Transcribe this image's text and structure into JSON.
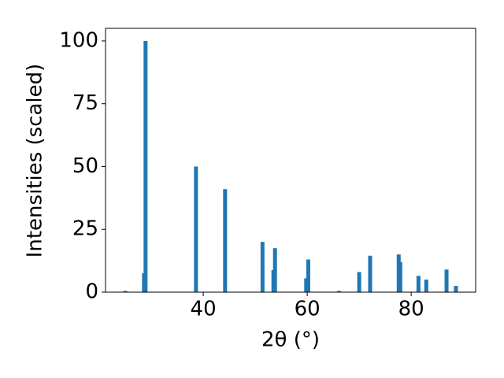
{
  "chart_data": {
    "type": "bar",
    "x_label": "2θ (°)",
    "y_label": "Intensities (scaled)",
    "x": [
      25.0,
      28.6,
      28.9,
      38.6,
      44.2,
      51.4,
      53.5,
      53.8,
      59.8,
      60.2,
      66.1,
      70.0,
      72.1,
      77.6,
      77.9,
      81.4,
      82.9,
      86.8,
      88.6
    ],
    "values": [
      0.5,
      7.5,
      100,
      50,
      41,
      20,
      8.8,
      17.5,
      5.5,
      13,
      0.5,
      8,
      14.5,
      15,
      12,
      6.5,
      5,
      9,
      2.5
    ],
    "color": "#1f77b4",
    "xlim": [
      21.2,
      92.4
    ],
    "ylim": [
      0,
      105
    ],
    "xticks": [
      40,
      60,
      80
    ],
    "yticks": [
      0,
      25,
      50,
      75,
      100
    ]
  }
}
